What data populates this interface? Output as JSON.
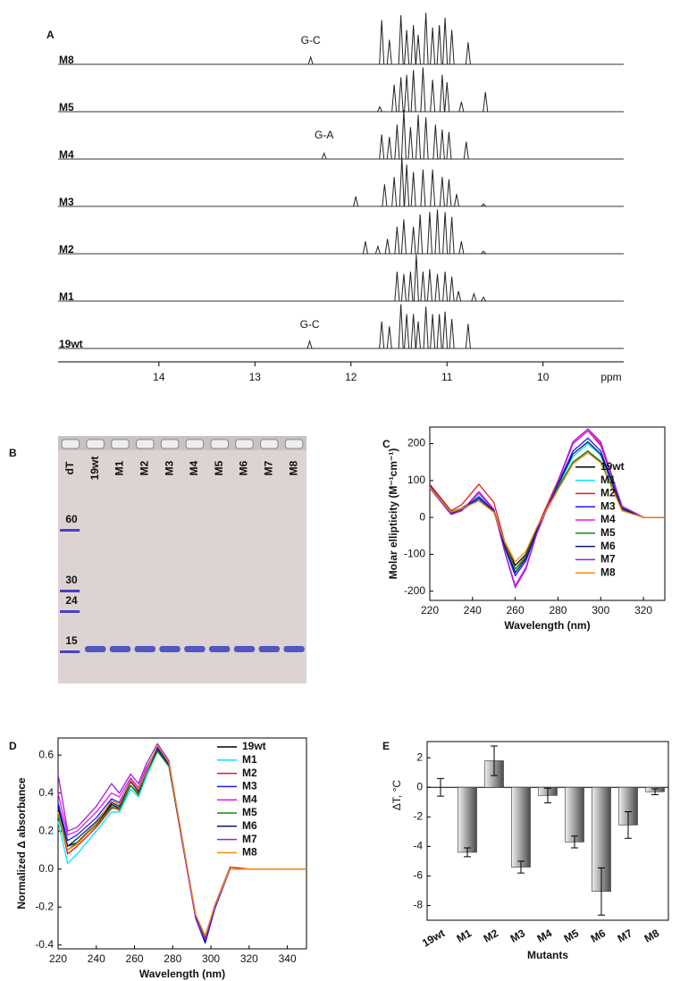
{
  "chart_data": [
    {
      "type": "nmr",
      "panel": "A",
      "xlabel": "ppm",
      "xlim": [
        15.05,
        9.16
      ],
      "xticks": [
        14,
        13,
        12,
        11,
        10
      ],
      "series": [
        {
          "name": "M8",
          "annotation": "G-C",
          "ppm": [
            12.42,
            11.68,
            11.6,
            11.48,
            11.42,
            11.35,
            11.3,
            11.22,
            11.15,
            11.08,
            11.02,
            10.95,
            10.78
          ],
          "intensity": [
            0.15,
            0.9,
            0.5,
            1.0,
            0.7,
            0.8,
            0.6,
            1.05,
            0.75,
            0.8,
            0.95,
            0.7,
            0.45
          ]
        },
        {
          "name": "M5",
          "ppm": [
            11.7,
            11.55,
            11.48,
            11.42,
            11.35,
            11.25,
            11.15,
            11.05,
            11.0,
            10.85,
            10.6
          ],
          "intensity": [
            0.1,
            0.55,
            0.7,
            0.75,
            0.85,
            0.9,
            0.65,
            0.75,
            0.6,
            0.2,
            0.4
          ]
        },
        {
          "name": "M4",
          "annotation": "G-A",
          "ppm": [
            12.28,
            11.68,
            11.6,
            11.52,
            11.45,
            11.38,
            11.3,
            11.22,
            11.12,
            11.05,
            10.98,
            10.8
          ],
          "intensity": [
            0.12,
            0.5,
            0.45,
            0.7,
            1.0,
            0.65,
            0.9,
            0.85,
            0.7,
            0.6,
            0.55,
            0.35
          ]
        },
        {
          "name": "M3",
          "ppm": [
            11.95,
            11.65,
            11.55,
            11.47,
            11.42,
            11.35,
            11.25,
            11.15,
            11.05,
            10.98,
            10.9,
            10.62
          ],
          "intensity": [
            0.2,
            0.45,
            0.6,
            1.0,
            0.85,
            0.7,
            0.75,
            0.75,
            0.6,
            0.55,
            0.25,
            0.05
          ]
        },
        {
          "name": "M2",
          "ppm": [
            11.85,
            11.72,
            11.62,
            11.52,
            11.45,
            11.35,
            11.28,
            11.18,
            11.1,
            11.02,
            10.95,
            10.85,
            10.62
          ],
          "intensity": [
            0.25,
            0.15,
            0.3,
            0.55,
            0.7,
            0.55,
            0.8,
            0.85,
            0.9,
            0.85,
            0.75,
            0.25,
            0.05
          ]
        },
        {
          "name": "M1",
          "ppm": [
            11.52,
            11.45,
            11.38,
            11.32,
            11.25,
            11.18,
            11.1,
            11.02,
            10.95,
            10.88,
            10.72,
            10.62
          ],
          "intensity": [
            0.6,
            0.55,
            0.6,
            0.95,
            0.6,
            0.65,
            0.55,
            0.6,
            0.5,
            0.2,
            0.15,
            0.08
          ]
        },
        {
          "name": "19wt",
          "annotation": "G-C",
          "ppm": [
            12.43,
            11.68,
            11.6,
            11.48,
            11.42,
            11.35,
            11.3,
            11.22,
            11.15,
            11.08,
            11.02,
            10.95,
            10.78
          ],
          "intensity": [
            0.15,
            0.55,
            0.45,
            0.9,
            0.7,
            0.7,
            0.55,
            0.85,
            0.7,
            0.7,
            0.75,
            0.6,
            0.5
          ]
        }
      ]
    },
    {
      "type": "gel",
      "panel": "B",
      "lanes": [
        "dT",
        "19wt",
        "M1",
        "M2",
        "M3",
        "M4",
        "M5",
        "M6",
        "M7",
        "M8"
      ],
      "ladder": [
        60,
        30,
        24,
        15
      ]
    },
    {
      "type": "line",
      "panel": "C",
      "xlabel": "Wavelength (nm)",
      "ylabel": "Molar ellipticity (M⁻¹cm⁻¹)",
      "xlim": [
        220,
        330
      ],
      "xticks": [
        220,
        240,
        260,
        280,
        300,
        320
      ],
      "ylim": [
        -225,
        245
      ],
      "yticks": [
        -200,
        -100,
        0,
        100,
        200
      ],
      "legend": "lower right",
      "x": [
        220,
        230,
        235,
        243,
        250,
        255,
        260,
        265,
        270,
        280,
        287,
        294,
        300,
        310,
        320,
        330
      ],
      "series": [
        {
          "name": "19wt",
          "color": "#000000",
          "values": [
            85,
            15,
            25,
            55,
            20,
            -70,
            -130,
            -100,
            -30,
            80,
            150,
            180,
            150,
            20,
            0,
            0
          ]
        },
        {
          "name": "M1",
          "color": "#00e5ff",
          "values": [
            80,
            12,
            22,
            58,
            18,
            -78,
            -148,
            -112,
            -35,
            85,
            165,
            200,
            168,
            22,
            0,
            0
          ]
        },
        {
          "name": "M2",
          "color": "#e8181b",
          "values": [
            90,
            18,
            35,
            90,
            40,
            -65,
            -140,
            -110,
            -30,
            100,
            200,
            235,
            195,
            30,
            0,
            0
          ]
        },
        {
          "name": "M3",
          "color": "#1a1aff",
          "values": [
            80,
            10,
            20,
            50,
            15,
            -80,
            -158,
            -118,
            -40,
            90,
            180,
            215,
            180,
            25,
            0,
            0
          ]
        },
        {
          "name": "M4",
          "color": "#ee11ee",
          "values": [
            80,
            8,
            20,
            65,
            20,
            -90,
            -185,
            -135,
            -45,
            95,
            200,
            235,
            200,
            28,
            0,
            0
          ]
        },
        {
          "name": "M5",
          "color": "#118811",
          "values": [
            85,
            15,
            25,
            45,
            15,
            -72,
            -140,
            -105,
            -32,
            78,
            150,
            180,
            152,
            20,
            0,
            0
          ]
        },
        {
          "name": "M6",
          "color": "#0b1a70",
          "values": [
            85,
            12,
            22,
            55,
            18,
            -78,
            -150,
            -112,
            -35,
            88,
            172,
            205,
            172,
            24,
            0,
            0
          ]
        },
        {
          "name": "M7",
          "color": "#9b20d8",
          "values": [
            80,
            8,
            18,
            70,
            22,
            -92,
            -190,
            -140,
            -45,
            98,
            205,
            240,
            205,
            30,
            0,
            0
          ]
        },
        {
          "name": "M8",
          "color": "#f08a10",
          "values": [
            82,
            14,
            24,
            45,
            14,
            -65,
            -120,
            -92,
            -28,
            75,
            145,
            175,
            148,
            18,
            0,
            0
          ]
        }
      ]
    },
    {
      "type": "line",
      "panel": "D",
      "xlabel": "Wavelength (nm)",
      "ylabel": "Normalized Δ absorbance",
      "xlim": [
        220,
        350
      ],
      "xticks": [
        220,
        240,
        260,
        280,
        300,
        320,
        340
      ],
      "ylim": [
        -0.42,
        0.69
      ],
      "yticks": [
        -0.4,
        -0.2,
        {
          "value": 0,
          "label": "0.0"
        },
        0.2,
        0.4,
        0.6
      ],
      "legend": "upper right",
      "x": [
        220,
        225,
        230,
        240,
        248,
        252,
        258,
        262,
        266,
        272,
        278,
        285,
        292,
        297,
        302,
        310,
        320,
        340,
        350
      ],
      "series": [
        {
          "name": "19wt",
          "color": "#000000",
          "values": [
            0.33,
            0.12,
            0.14,
            0.24,
            0.34,
            0.32,
            0.44,
            0.4,
            0.5,
            0.63,
            0.55,
            0.15,
            -0.24,
            -0.37,
            -0.2,
            0.0,
            0.0,
            0.0,
            0.0
          ]
        },
        {
          "name": "M1",
          "color": "#00e5ff",
          "values": [
            0.25,
            0.03,
            0.08,
            0.2,
            0.3,
            0.3,
            0.42,
            0.38,
            0.48,
            0.62,
            0.55,
            0.16,
            -0.25,
            -0.38,
            -0.2,
            0.0,
            0.0,
            0.0,
            0.0
          ]
        },
        {
          "name": "M2",
          "color": "#e8181b",
          "values": [
            0.3,
            0.08,
            0.12,
            0.22,
            0.32,
            0.32,
            0.44,
            0.4,
            0.5,
            0.64,
            0.56,
            0.16,
            -0.25,
            -0.37,
            -0.19,
            0.01,
            0.0,
            0.0,
            0.0
          ]
        },
        {
          "name": "M3",
          "color": "#1a1aff",
          "values": [
            0.35,
            0.15,
            0.18,
            0.27,
            0.37,
            0.35,
            0.47,
            0.42,
            0.52,
            0.63,
            0.55,
            0.14,
            -0.26,
            -0.39,
            -0.21,
            0.0,
            0.0,
            0.0,
            0.0
          ]
        },
        {
          "name": "M4",
          "color": "#ee11ee",
          "values": [
            0.4,
            0.18,
            0.2,
            0.3,
            0.4,
            0.38,
            0.48,
            0.43,
            0.53,
            0.64,
            0.55,
            0.14,
            -0.25,
            -0.36,
            -0.2,
            0.0,
            0.0,
            0.0,
            0.0
          ]
        },
        {
          "name": "M5",
          "color": "#118811",
          "values": [
            0.28,
            0.1,
            0.14,
            0.23,
            0.33,
            0.31,
            0.44,
            0.39,
            0.5,
            0.62,
            0.54,
            0.15,
            -0.24,
            -0.36,
            -0.19,
            0.0,
            0.0,
            0.0,
            0.0
          ]
        },
        {
          "name": "M6",
          "color": "#0b1a70",
          "values": [
            0.32,
            0.12,
            0.16,
            0.25,
            0.35,
            0.33,
            0.46,
            0.41,
            0.51,
            0.64,
            0.55,
            0.15,
            -0.25,
            -0.38,
            -0.2,
            0.0,
            0.0,
            0.0,
            0.0
          ]
        },
        {
          "name": "M7",
          "color": "#9b20d8",
          "values": [
            0.5,
            0.2,
            0.22,
            0.33,
            0.45,
            0.4,
            0.5,
            0.45,
            0.55,
            0.66,
            0.57,
            0.15,
            -0.26,
            -0.37,
            -0.2,
            0.0,
            0.0,
            0.0,
            0.0
          ]
        },
        {
          "name": "M8",
          "color": "#f08a10",
          "values": [
            0.3,
            0.1,
            0.13,
            0.24,
            0.36,
            0.34,
            0.47,
            0.42,
            0.51,
            0.65,
            0.56,
            0.16,
            -0.24,
            -0.35,
            -0.19,
            0.0,
            0.0,
            0.0,
            0.0
          ]
        }
      ]
    },
    {
      "type": "bar",
      "panel": "E",
      "xlabel": "Mutants",
      "ylabel": "ΔT, °C",
      "categories": [
        "19wt",
        "M1",
        "M2",
        "M3",
        "M4",
        "M5",
        "M6",
        "M7",
        "M8"
      ],
      "values": [
        0,
        -4.4,
        1.8,
        -5.4,
        -0.55,
        -3.7,
        -7.05,
        -2.55,
        -0.3
      ],
      "errors": [
        0.6,
        0.3,
        1.0,
        0.4,
        0.5,
        0.4,
        1.6,
        0.9,
        0.2
      ],
      "ylim": [
        -9.0,
        3.1
      ],
      "yticks": [
        -8,
        -6,
        -4,
        -2,
        0,
        2
      ]
    }
  ]
}
